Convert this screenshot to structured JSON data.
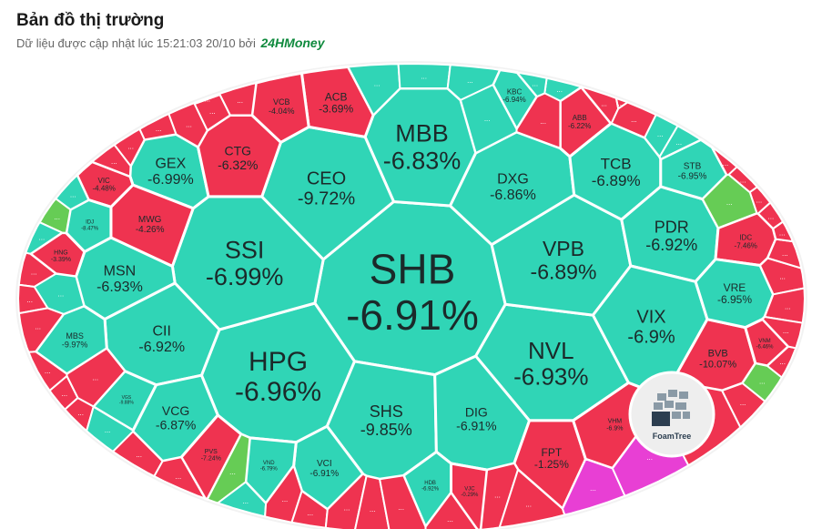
{
  "header": {
    "title": "Bản đồ thị trường",
    "subtitle": "Dữ liệu được cập nhật lúc 15:21:03 20/10 bởi",
    "brand": "24HMoney"
  },
  "colors": {
    "down_teal": "#30d5b6",
    "down_teal_light": "#58e0c8",
    "down_red": "#ef3350",
    "down_red_light": "#f06077",
    "up_green": "#66cc55",
    "cross_pink": "#e83fd4",
    "border": "#ffffff",
    "frame": "#f2f2f2"
  },
  "watermark": {
    "label": "FoamTree"
  },
  "chart_data": {
    "type": "treemap",
    "layout": "voronoi",
    "more_label": "...",
    "cells": [
      {
        "ticker": "SHB",
        "change": "-6.91%",
        "color": "teal"
      },
      {
        "ticker": "MBB",
        "change": "-6.83%",
        "color": "teal"
      },
      {
        "ticker": "HPG",
        "change": "-6.96%",
        "color": "teal"
      },
      {
        "ticker": "SSI",
        "change": "-6.99%",
        "color": "teal"
      },
      {
        "ticker": "NVL",
        "change": "-6.93%",
        "color": "teal"
      },
      {
        "ticker": "VPB",
        "change": "-6.89%",
        "color": "teal"
      },
      {
        "ticker": "CEO",
        "change": "-9.72%",
        "color": "teal"
      },
      {
        "ticker": "DXG",
        "change": "-6.86%",
        "color": "teal"
      },
      {
        "ticker": "TCB",
        "change": "-6.89%",
        "color": "teal"
      },
      {
        "ticker": "PDR",
        "change": "-6.92%",
        "color": "teal"
      },
      {
        "ticker": "VIX",
        "change": "-6.9%",
        "color": "teal"
      },
      {
        "ticker": "GEX",
        "change": "-6.99%",
        "color": "teal"
      },
      {
        "ticker": "MSN",
        "change": "-6.93%",
        "color": "teal"
      },
      {
        "ticker": "CII",
        "change": "-6.92%",
        "color": "teal"
      },
      {
        "ticker": "SHS",
        "change": "-9.85%",
        "color": "teal"
      },
      {
        "ticker": "DIG",
        "change": "-6.91%",
        "color": "teal"
      },
      {
        "ticker": "VCG",
        "change": "-6.87%",
        "color": "teal"
      },
      {
        "ticker": "CTG",
        "change": "-6.32%",
        "color": "red"
      },
      {
        "ticker": "ACB",
        "change": "-3.69%",
        "color": "red"
      },
      {
        "ticker": "VCB",
        "change": "-4.04%",
        "color": "red"
      },
      {
        "ticker": "MWG",
        "change": "-4.26%",
        "color": "red"
      },
      {
        "ticker": "VIC",
        "change": "-4.48%",
        "color": "red"
      },
      {
        "ticker": "HNG",
        "change": "-3.39%",
        "color": "red"
      },
      {
        "ticker": "ABB",
        "change": "-6.22%",
        "color": "red"
      },
      {
        "ticker": "FPT",
        "change": "-1.25%",
        "color": "red"
      },
      {
        "ticker": "VHM",
        "change": "-6.9%",
        "color": "red"
      },
      {
        "ticker": "PVS",
        "change": "-7.24%",
        "color": "red"
      },
      {
        "ticker": "VJC",
        "change": "-0.29%",
        "color": "red"
      },
      {
        "ticker": "BVB",
        "change": "-10.07%",
        "color": "red"
      },
      {
        "ticker": "IDC",
        "change": "-7.46%",
        "color": "red"
      },
      {
        "ticker": "VNM",
        "change": "-6.46%",
        "color": "red"
      },
      {
        "ticker": "KBC",
        "change": "-6.94%",
        "color": "teal"
      },
      {
        "ticker": "STB",
        "change": "-6.95%",
        "color": "teal"
      },
      {
        "ticker": "VRE",
        "change": "-6.95%",
        "color": "teal"
      },
      {
        "ticker": "MBS",
        "change": "-9.97%",
        "color": "teal"
      },
      {
        "ticker": "IDJ",
        "change": "-8.47%",
        "color": "teal"
      },
      {
        "ticker": "VCI",
        "change": "-6.91%",
        "color": "teal"
      },
      {
        "ticker": "HDB",
        "change": "-6.92%",
        "color": "teal"
      },
      {
        "ticker": "VND",
        "change": "-6.79%",
        "color": "teal"
      },
      {
        "ticker": "VGS",
        "change": "-9.88%",
        "color": "teal"
      }
    ]
  }
}
